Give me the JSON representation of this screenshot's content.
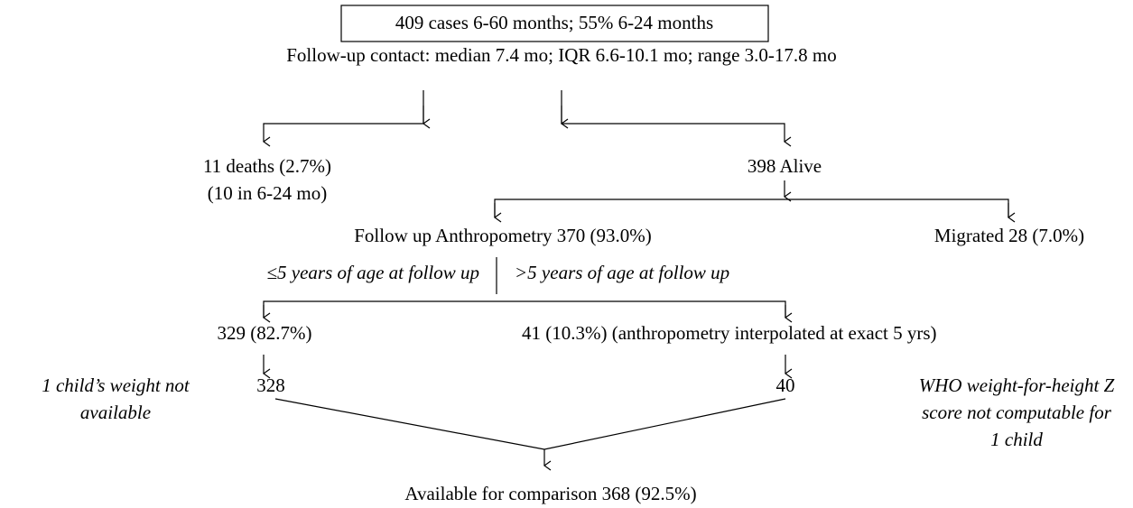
{
  "nodes": [
    {
      "label": "409 cases 6-60 months; 55% 6-24 months"
    },
    {
      "label": "Follow-up contact: median 7.4 mo; IQR 6.6-10.1 mo; range 3.0-17.8 mo"
    },
    {
      "lines": [
        "11 deaths (2.7%)",
        "(10 in 6-24 mo)"
      ]
    },
    {
      "label": "398 Alive"
    },
    {
      "label": "Follow up Anthropometry 370 (93.0%)"
    },
    {
      "label": "Migrated 28 (7.0%)"
    },
    {
      "label": "329 (82.7%)"
    },
    {
      "label": "41 (10.3%) (anthropometry interpolated at exact 5 yrs)"
    },
    {
      "label": "328"
    },
    {
      "label": "40"
    },
    {
      "label": "Available for comparison 368 (92.5%)"
    }
  ],
  "branch_labels": [
    "≤5 years of age at follow up",
    ">5 years of age at follow up"
  ],
  "notes": [
    {
      "lines": [
        "1 child’s weight not",
        "available"
      ]
    },
    {
      "lines": [
        "WHO weight-for-height Z",
        "score not computable for",
        "1 child"
      ]
    }
  ]
}
